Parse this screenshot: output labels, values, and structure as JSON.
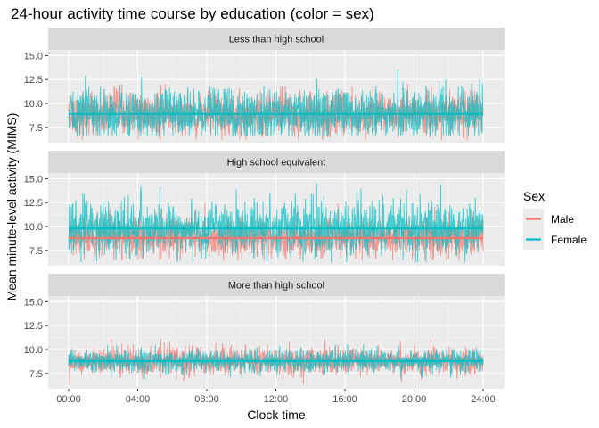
{
  "chart_data": {
    "type": "line",
    "title": "24-hour activity time course by education (color = sex)",
    "xlabel": "Clock time",
    "ylabel": "Mean minute-level activity (MIMS)",
    "x_unit": "clock time",
    "x_ticks": [
      "00:00",
      "04:00",
      "08:00",
      "12:00",
      "16:00",
      "20:00",
      "24:00"
    ],
    "xlim": [
      "00:00",
      "24:00"
    ],
    "ylim": [
      5.9,
      15.6
    ],
    "y_ticks": [
      "7.5",
      "10.0",
      "12.5",
      "15.0"
    ],
    "grid": true,
    "legend": {
      "title": "Sex",
      "placement": "right",
      "entries": [
        {
          "label": "Male",
          "color": "#F8766D"
        },
        {
          "label": "Female",
          "color": "#00BFC4"
        }
      ]
    },
    "facets": [
      {
        "label": "Less than high school",
        "series": [
          {
            "name": "Male",
            "color": "#F8766D",
            "mean": 8.9,
            "min": 6.2,
            "max": 13.0
          },
          {
            "name": "Female",
            "color": "#00BFC4",
            "mean": 8.9,
            "min": 6.7,
            "max": 13.5
          }
        ]
      },
      {
        "label": "High school equivalent",
        "series": [
          {
            "name": "Male",
            "color": "#F8766D",
            "mean": 8.8,
            "min": 6.5,
            "max": 12.5
          },
          {
            "name": "Female",
            "color": "#00BFC4",
            "mean": 9.8,
            "min": 6.3,
            "max": 14.6
          }
        ]
      },
      {
        "label": "More than high school",
        "series": [
          {
            "name": "Male",
            "color": "#F8766D",
            "mean": 8.8,
            "min": 6.3,
            "max": 11.4
          },
          {
            "name": "Female",
            "color": "#00BFC4",
            "mean": 8.8,
            "min": 6.9,
            "max": 10.9
          }
        ]
      }
    ]
  }
}
